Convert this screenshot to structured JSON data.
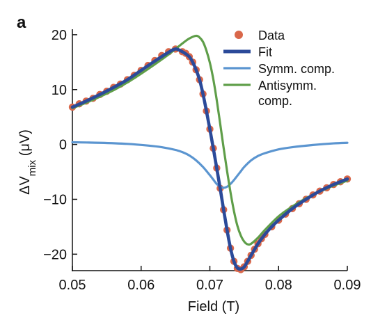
{
  "chart_data": {
    "type": "line",
    "panel_label": "a",
    "xlabel": "Field (T)",
    "ylabel": {
      "prefix": "ΔV",
      "subscript": "mix",
      "unit": " (μV)"
    },
    "xlim": [
      0.05,
      0.09
    ],
    "ylim": [
      -23,
      21
    ],
    "xticks": [
      0.05,
      0.06,
      0.07,
      0.08,
      0.09
    ],
    "xtick_labels": [
      "0.05",
      "0.06",
      "0.07",
      "0.08",
      "0.09"
    ],
    "yticks": [
      20,
      10,
      0,
      -10,
      -20
    ],
    "ytick_labels": [
      "20",
      "10",
      "0",
      "−10",
      "−20"
    ],
    "legend": {
      "placement": "top-right",
      "items": [
        {
          "label": "Data",
          "marker": "circle"
        },
        {
          "label": "Fit",
          "marker": "thick-line"
        },
        {
          "label": "Symm. comp.",
          "marker": "line"
        },
        {
          "label": "Antisymm.",
          "label2": "comp.",
          "marker": "line"
        }
      ]
    },
    "series": [
      {
        "name": "Data",
        "style": "markers",
        "color": "#d9674a",
        "x": [
          0.05,
          0.051,
          0.052,
          0.053,
          0.054,
          0.055,
          0.056,
          0.057,
          0.058,
          0.059,
          0.06,
          0.061,
          0.062,
          0.063,
          0.064,
          0.065,
          0.066,
          0.0665,
          0.067,
          0.0675,
          0.068,
          0.0685,
          0.069,
          0.0695,
          0.07,
          0.0705,
          0.071,
          0.0715,
          0.072,
          0.0725,
          0.073,
          0.0735,
          0.074,
          0.0745,
          0.075,
          0.0755,
          0.076,
          0.0765,
          0.077,
          0.0775,
          0.078,
          0.079,
          0.08,
          0.081,
          0.082,
          0.083,
          0.084,
          0.085,
          0.086,
          0.087,
          0.088,
          0.089,
          0.09
        ],
        "y": [
          6.8,
          7.4,
          7.9,
          8.4,
          9.1,
          9.7,
          10.4,
          11.0,
          11.8,
          12.6,
          13.5,
          14.4,
          15.3,
          16.2,
          16.9,
          17.4,
          16.9,
          16.6,
          16.0,
          15.0,
          13.6,
          11.8,
          9.2,
          6.1,
          2.8,
          -0.7,
          -4.3,
          -8.0,
          -11.9,
          -15.6,
          -18.9,
          -21.3,
          -22.6,
          -22.8,
          -22.3,
          -21.3,
          -20.2,
          -19.1,
          -18.1,
          -17.2,
          -16.4,
          -15.0,
          -13.8,
          -12.7,
          -11.7,
          -10.8,
          -10.0,
          -9.2,
          -8.5,
          -7.9,
          -7.3,
          -6.8,
          -6.3
        ]
      },
      {
        "name": "Fit",
        "style": "thick-line",
        "color": "#2b4a99",
        "x": [
          0.05,
          0.052,
          0.054,
          0.056,
          0.058,
          0.06,
          0.062,
          0.064,
          0.065,
          0.066,
          0.067,
          0.0675,
          0.068,
          0.0685,
          0.069,
          0.0695,
          0.07,
          0.0705,
          0.071,
          0.0715,
          0.072,
          0.0725,
          0.073,
          0.0735,
          0.074,
          0.0745,
          0.075,
          0.0755,
          0.076,
          0.077,
          0.078,
          0.079,
          0.08,
          0.082,
          0.084,
          0.086,
          0.088,
          0.09
        ],
        "y": [
          6.8,
          7.9,
          9.1,
          10.4,
          11.8,
          13.5,
          15.2,
          16.8,
          17.4,
          16.9,
          16.0,
          15.0,
          13.6,
          11.8,
          9.2,
          6.1,
          2.8,
          -0.7,
          -4.3,
          -8.0,
          -11.9,
          -15.6,
          -18.9,
          -21.3,
          -22.5,
          -22.7,
          -22.3,
          -21.3,
          -20.2,
          -18.1,
          -16.4,
          -15.0,
          -13.8,
          -11.7,
          -10.0,
          -8.5,
          -7.3,
          -6.3
        ]
      },
      {
        "name": "Symm. comp.",
        "style": "line",
        "color": "#5b95d0",
        "x": [
          0.05,
          0.054,
          0.058,
          0.061,
          0.063,
          0.065,
          0.066,
          0.067,
          0.068,
          0.069,
          0.07,
          0.0705,
          0.071,
          0.0715,
          0.072,
          0.0725,
          0.073,
          0.0735,
          0.074,
          0.0745,
          0.075,
          0.076,
          0.077,
          0.078,
          0.08,
          0.082,
          0.085,
          0.088,
          0.09
        ],
        "y": [
          0.4,
          0.3,
          0.1,
          -0.2,
          -0.5,
          -1.0,
          -1.4,
          -2.0,
          -2.9,
          -4.1,
          -5.6,
          -6.4,
          -7.2,
          -7.7,
          -7.9,
          -7.7,
          -7.2,
          -6.5,
          -5.7,
          -4.9,
          -4.1,
          -2.9,
          -2.1,
          -1.6,
          -0.9,
          -0.5,
          -0.1,
          0.2,
          0.3
        ]
      },
      {
        "name": "Antisymm. comp.",
        "style": "line",
        "color": "#5f9e49",
        "x": [
          0.05,
          0.052,
          0.054,
          0.056,
          0.058,
          0.06,
          0.062,
          0.064,
          0.066,
          0.067,
          0.068,
          0.0685,
          0.069,
          0.0695,
          0.07,
          0.0705,
          0.071,
          0.0715,
          0.072,
          0.0725,
          0.073,
          0.0735,
          0.074,
          0.0745,
          0.075,
          0.0755,
          0.076,
          0.077,
          0.078,
          0.08,
          0.082,
          0.084,
          0.086,
          0.088,
          0.09
        ],
        "y": [
          6.6,
          7.6,
          8.7,
          9.9,
          11.3,
          12.9,
          14.6,
          16.4,
          18.4,
          19.3,
          19.8,
          19.5,
          18.7,
          17.1,
          14.9,
          11.9,
          8.1,
          3.8,
          -0.6,
          -4.8,
          -8.7,
          -12.1,
          -14.8,
          -16.6,
          -17.7,
          -18.2,
          -18.1,
          -17.0,
          -15.6,
          -13.1,
          -11.3,
          -9.8,
          -8.6,
          -7.5,
          -6.6
        ]
      }
    ]
  }
}
